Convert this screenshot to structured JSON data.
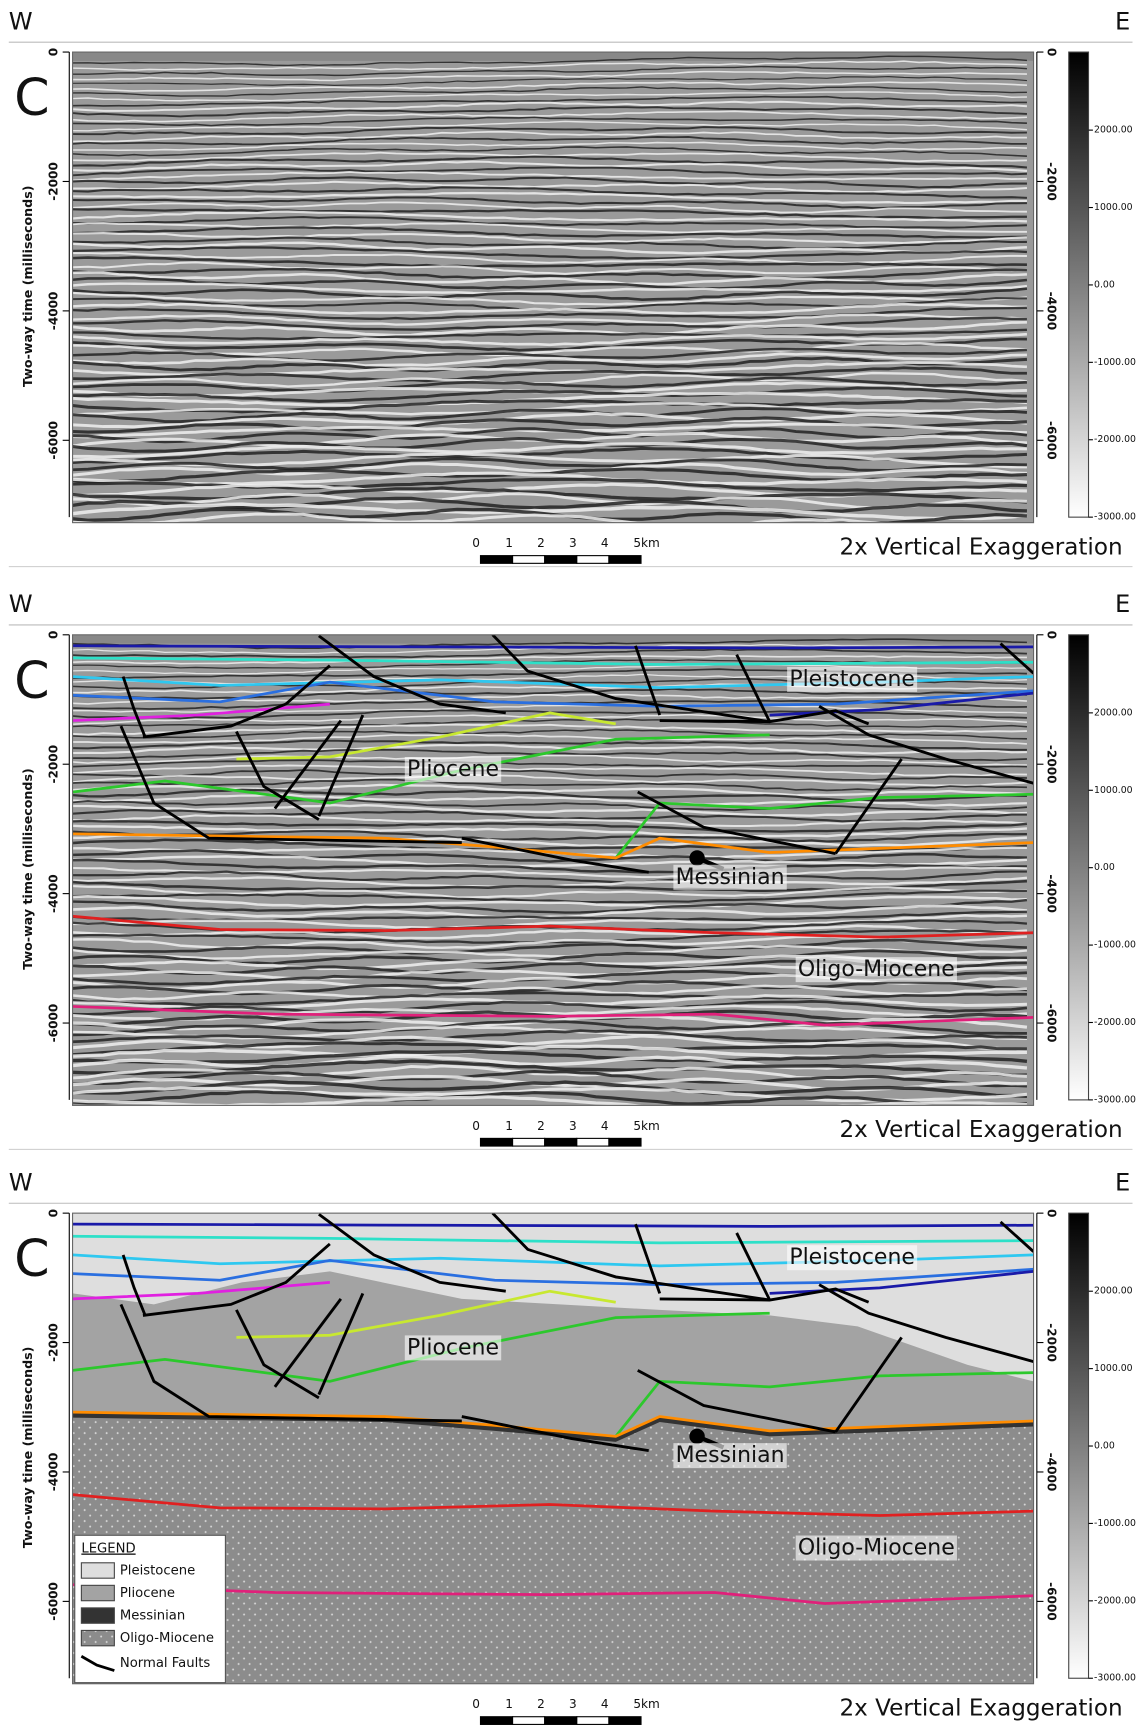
{
  "panels": [
    {
      "west": "W",
      "east": "E",
      "label": "C",
      "y_axis_title": "Two-way time (milliseconds)",
      "y_ticks": [
        "0",
        "-2000",
        "-4000",
        "-6000"
      ],
      "y2_ticks": [
        "0",
        "-2000",
        "-4000",
        "-6000"
      ],
      "colorbar_ticks": [
        "2000.00",
        "1000.00",
        "0.00",
        "-1000.00",
        "-2000.00",
        "-3000.00"
      ],
      "scale_bar": [
        "0",
        "1",
        "2",
        "3",
        "4",
        "5km"
      ],
      "exaggeration": "2x Vertical Exaggeration"
    },
    {
      "west": "W",
      "east": "E",
      "label": "C",
      "y_axis_title": "Two-way time (milliseconds)",
      "y_ticks": [
        "0",
        "-2000",
        "-4000",
        "-6000"
      ],
      "y2_ticks": [
        "0",
        "-2000",
        "-4000",
        "-6000"
      ],
      "colorbar_ticks": [
        "2000.00",
        "1000.00",
        "0.00",
        "-1000.00",
        "-2000.00",
        "-3000.00"
      ],
      "scale_bar": [
        "0",
        "1",
        "2",
        "3",
        "4",
        "5km"
      ],
      "exaggeration": "2x Vertical Exaggeration",
      "units": [
        "Pleistocene",
        "Pliocene",
        "Messinian",
        "Oligo-Miocene"
      ]
    },
    {
      "west": "W",
      "east": "E",
      "label": "C",
      "y_axis_title": "Two-way time (milliseconds)",
      "y_ticks": [
        "0",
        "-2000",
        "-4000",
        "-6000"
      ],
      "y2_ticks": [
        "0",
        "-2000",
        "-4000",
        "-6000"
      ],
      "colorbar_ticks": [
        "2000.00",
        "1000.00",
        "0.00",
        "-1000.00",
        "-2000.00",
        "-3000.00"
      ],
      "scale_bar": [
        "0",
        "1",
        "2",
        "3",
        "4",
        "5km"
      ],
      "exaggeration": "2x Vertical Exaggeration",
      "units": [
        "Pleistocene",
        "Pliocene",
        "Messinian",
        "Oligo-Miocene"
      ],
      "legend": {
        "title": "LEGEND",
        "items": [
          "Pleistocene",
          "Pliocene",
          "Messinian",
          "Oligo-Miocene",
          "Normal Faults"
        ]
      }
    }
  ]
}
